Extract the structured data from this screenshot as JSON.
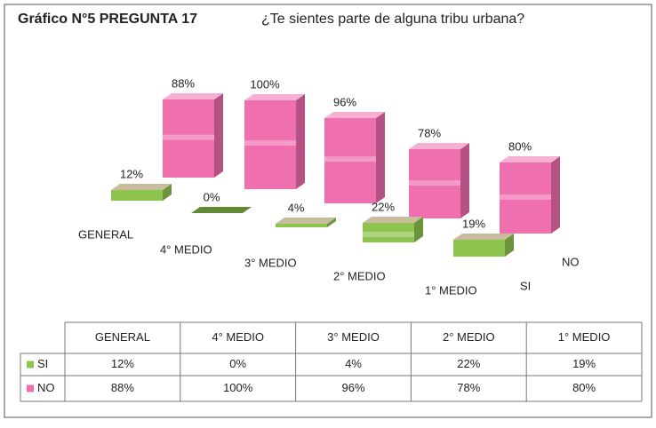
{
  "chart_data": {
    "type": "bar3d",
    "title": "Gráfico N°5  PREGUNTA 17",
    "subtitle": "¿Te sientes parte de alguna tribu urbana?",
    "categories": [
      "GENERAL",
      "4° MEDIO",
      "3° MEDIO",
      "2° MEDIO",
      "1° MEDIO"
    ],
    "series": [
      {
        "name": "SI",
        "color": "#8dc44e",
        "values": [
          12,
          0,
          4,
          22,
          19
        ],
        "value_labels": [
          "12%",
          "0%",
          "4%",
          "22%",
          "19%"
        ]
      },
      {
        "name": "NO",
        "color": "#f06fae",
        "values": [
          88,
          100,
          96,
          78,
          80
        ],
        "value_labels": [
          "88%",
          "100%",
          "96%",
          "78%",
          "80%"
        ]
      }
    ],
    "data_table": true
  }
}
